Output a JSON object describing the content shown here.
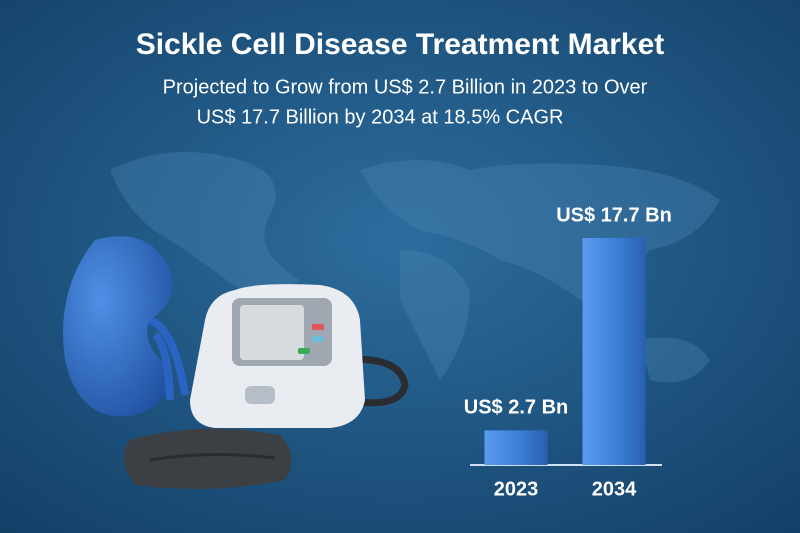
{
  "chart_data": {
    "type": "bar",
    "title": "Sickle Cell Disease Treatment Market",
    "subtitle": [
      "Projected to Grow from US$ 2.7 Billion in 2023 to Over",
      "US$ 17.7 Billion by 2034 at 18.5% CAGR"
    ],
    "categories": [
      "2023",
      "2034"
    ],
    "values": [
      2.7,
      17.7
    ],
    "value_labels": [
      "US$ 2.7 Bn",
      "US$ 17.7 Bn"
    ],
    "color": "#3a7bd5"
  }
}
